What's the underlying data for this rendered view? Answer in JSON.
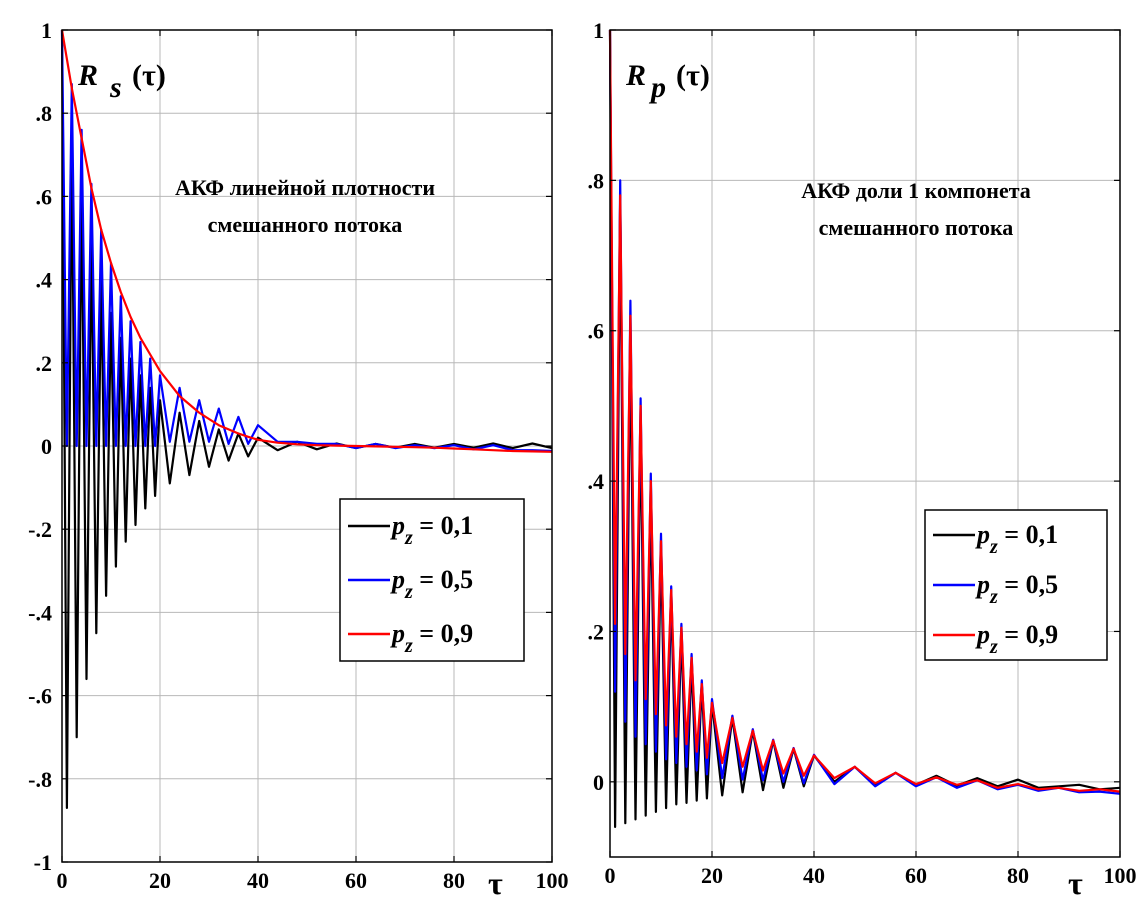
{
  "chart_data": [
    {
      "type": "line",
      "ylabel_main": "R",
      "ylabel_sub": "s",
      "ylabel_arg": "(τ)",
      "xlabel": "τ",
      "annotation": [
        "АКФ линейной плотности",
        "смешанного потока"
      ],
      "xlim": [
        0,
        100
      ],
      "ylim": [
        -1,
        1
      ],
      "xticks": [
        0,
        20,
        40,
        60,
        80,
        100
      ],
      "yticks": [
        -1,
        -0.8,
        -0.6,
        -0.4,
        -0.2,
        0,
        0.2,
        0.4,
        0.6,
        0.8,
        1
      ],
      "grid": true,
      "legend_position": "center-right",
      "series": [
        {
          "name": "p_z = 0,1",
          "label_main": "p",
          "label_sub": "z",
          "label_rest": " = 0,1",
          "color": "#000000",
          "x": [
            0,
            1,
            2,
            3,
            4,
            5,
            6,
            7,
            8,
            9,
            10,
            11,
            12,
            13,
            14,
            15,
            16,
            17,
            18,
            19,
            20,
            22,
            24,
            26,
            28,
            30,
            32,
            34,
            36,
            38,
            40,
            44,
            48,
            52,
            56,
            60,
            64,
            68,
            72,
            76,
            80,
            84,
            88,
            92,
            96,
            100
          ],
          "y": [
            1,
            -0.87,
            0.76,
            -0.7,
            0.63,
            -0.56,
            0.5,
            -0.45,
            0.4,
            -0.36,
            0.32,
            -0.29,
            0.26,
            -0.23,
            0.21,
            -0.19,
            0.17,
            -0.15,
            0.14,
            -0.12,
            0.11,
            -0.09,
            0.08,
            -0.07,
            0.06,
            -0.05,
            0.04,
            -0.035,
            0.03,
            -0.025,
            0.02,
            -0.01,
            0.01,
            -0.008,
            0.006,
            -0.005,
            0.005,
            -0.004,
            0.005,
            -0.004,
            0.005,
            -0.004,
            0.006,
            -0.005,
            0.006,
            -0.005
          ]
        },
        {
          "name": "p_z = 0,5",
          "label_main": "p",
          "label_sub": "z",
          "label_rest": " = 0,5",
          "color": "#0000ff",
          "x": [
            0,
            1,
            2,
            3,
            4,
            5,
            6,
            7,
            8,
            9,
            10,
            11,
            12,
            13,
            14,
            15,
            16,
            17,
            18,
            19,
            20,
            22,
            24,
            26,
            28,
            30,
            32,
            34,
            36,
            38,
            40,
            44,
            48,
            52,
            56,
            60,
            64,
            68,
            72,
            76,
            80,
            84,
            88,
            92,
            96,
            100
          ],
          "y": [
            1,
            0,
            0.87,
            0,
            0.76,
            0,
            0.63,
            0,
            0.52,
            0,
            0.44,
            0,
            0.36,
            0,
            0.3,
            0,
            0.25,
            0,
            0.21,
            0,
            0.17,
            0.01,
            0.14,
            0.01,
            0.11,
            0.01,
            0.09,
            0.005,
            0.07,
            0.005,
            0.05,
            0.01,
            0.01,
            0.005,
            0.005,
            -0.005,
            0.005,
            -0.005,
            0.002,
            -0.005,
            0.002,
            -0.008,
            0.002,
            -0.01,
            -0.01,
            -0.012
          ]
        },
        {
          "name": "p_z = 0,9",
          "label_main": "p",
          "label_sub": "z",
          "label_rest": " = 0,9",
          "color": "#ff0000",
          "x": [
            0,
            1,
            2,
            3,
            4,
            5,
            6,
            7,
            8,
            9,
            10,
            12,
            14,
            16,
            18,
            20,
            22,
            24,
            26,
            28,
            30,
            32,
            34,
            36,
            38,
            40,
            44,
            48,
            52,
            56,
            60,
            64,
            68,
            72,
            76,
            80,
            84,
            88,
            92,
            96,
            100
          ],
          "y": [
            1,
            0.93,
            0.86,
            0.8,
            0.74,
            0.68,
            0.62,
            0.57,
            0.52,
            0.48,
            0.44,
            0.37,
            0.31,
            0.26,
            0.22,
            0.18,
            0.15,
            0.12,
            0.1,
            0.08,
            0.065,
            0.05,
            0.04,
            0.03,
            0.022,
            0.015,
            0.008,
            0.004,
            0.002,
            0.001,
            0,
            -0.001,
            -0.002,
            -0.003,
            -0.004,
            -0.006,
            -0.008,
            -0.01,
            -0.012,
            -0.013,
            -0.014
          ]
        }
      ]
    },
    {
      "type": "line",
      "ylabel_main": "R",
      "ylabel_sub": "p",
      "ylabel_arg": "(τ)",
      "xlabel": "τ",
      "annotation": [
        "АКФ доли 1 компонета",
        "смешанного потока"
      ],
      "xlim": [
        0,
        100
      ],
      "ylim": [
        -0.1,
        1
      ],
      "xticks": [
        0,
        20,
        40,
        60,
        80,
        100
      ],
      "yticks": [
        0,
        0.2,
        0.4,
        0.6,
        0.8,
        1
      ],
      "grid": true,
      "legend_position": "center-right",
      "series": [
        {
          "name": "p_z = 0,1",
          "label_main": "p",
          "label_sub": "z",
          "label_rest": " = 0,1",
          "color": "#000000",
          "x": [
            0,
            1,
            2,
            3,
            4,
            5,
            6,
            7,
            8,
            9,
            10,
            11,
            12,
            13,
            14,
            15,
            16,
            17,
            18,
            19,
            20,
            22,
            24,
            26,
            28,
            30,
            32,
            34,
            36,
            38,
            40,
            44,
            48,
            52,
            56,
            60,
            64,
            68,
            72,
            76,
            80,
            84,
            88,
            92,
            96,
            100
          ],
          "y": [
            1,
            -0.06,
            0.78,
            -0.055,
            0.6,
            -0.05,
            0.48,
            -0.045,
            0.38,
            -0.04,
            0.31,
            -0.035,
            0.25,
            -0.03,
            0.2,
            -0.028,
            0.16,
            -0.025,
            0.13,
            -0.022,
            0.105,
            -0.018,
            0.085,
            -0.014,
            0.068,
            -0.011,
            0.055,
            -0.008,
            0.044,
            -0.006,
            0.035,
            0.0,
            0.02,
            -0.005,
            0.012,
            -0.004,
            0.008,
            -0.005,
            0.005,
            -0.006,
            0.003,
            -0.008,
            -0.006,
            -0.004,
            -0.01,
            -0.008
          ]
        },
        {
          "name": "p_z = 0,5",
          "label_main": "p",
          "label_sub": "z",
          "label_rest": " = 0,5",
          "color": "#0000ff",
          "x": [
            0,
            1,
            2,
            3,
            4,
            5,
            6,
            7,
            8,
            9,
            10,
            11,
            12,
            13,
            14,
            15,
            16,
            17,
            18,
            19,
            20,
            22,
            24,
            26,
            28,
            30,
            32,
            34,
            36,
            38,
            40,
            44,
            48,
            52,
            56,
            60,
            64,
            68,
            72,
            76,
            80,
            84,
            88,
            92,
            96,
            100
          ],
          "y": [
            1,
            0.12,
            0.8,
            0.08,
            0.64,
            0.06,
            0.51,
            0.05,
            0.41,
            0.04,
            0.33,
            0.03,
            0.26,
            0.025,
            0.21,
            0.02,
            0.17,
            0.015,
            0.135,
            0.01,
            0.11,
            0.005,
            0.088,
            0.003,
            0.07,
            0.002,
            0.056,
            0.0,
            0.045,
            -0.002,
            0.036,
            -0.003,
            0.02,
            -0.006,
            0.012,
            -0.006,
            0.006,
            -0.008,
            0.002,
            -0.01,
            -0.004,
            -0.012,
            -0.008,
            -0.014,
            -0.013,
            -0.016
          ]
        },
        {
          "name": "p_z = 0,9",
          "label_main": "p",
          "label_sub": "z",
          "label_rest": " = 0,9",
          "color": "#ff0000",
          "x": [
            0,
            1,
            2,
            3,
            4,
            5,
            6,
            7,
            8,
            9,
            10,
            11,
            12,
            13,
            14,
            15,
            16,
            17,
            18,
            19,
            20,
            22,
            24,
            26,
            28,
            30,
            32,
            34,
            36,
            38,
            40,
            44,
            48,
            52,
            56,
            60,
            64,
            68,
            72,
            76,
            80,
            84,
            88,
            92,
            96,
            100
          ],
          "y": [
            1,
            0.21,
            0.78,
            0.17,
            0.62,
            0.135,
            0.5,
            0.11,
            0.4,
            0.09,
            0.32,
            0.075,
            0.255,
            0.06,
            0.205,
            0.05,
            0.165,
            0.04,
            0.13,
            0.032,
            0.105,
            0.025,
            0.085,
            0.02,
            0.068,
            0.015,
            0.055,
            0.011,
            0.044,
            0.008,
            0.035,
            0.005,
            0.02,
            -0.002,
            0.012,
            -0.003,
            0.006,
            -0.004,
            0.002,
            -0.008,
            -0.003,
            -0.01,
            -0.008,
            -0.012,
            -0.01,
            -0.013
          ]
        }
      ]
    }
  ]
}
